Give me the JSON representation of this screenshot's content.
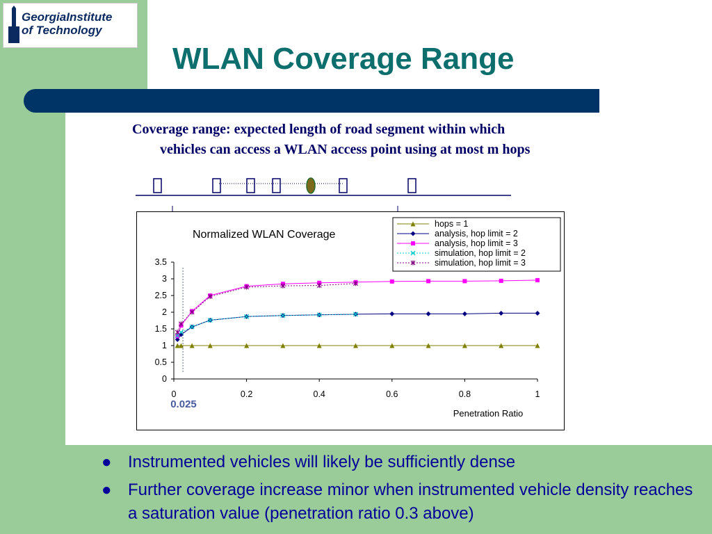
{
  "slide": {
    "logo_line1": "GeorgiaInstitute",
    "logo_line2": "of Technology",
    "title": "WLAN Coverage Range",
    "definition_line1": "Coverage range: expected length of road segment within which",
    "definition_line2": "vehicles can access a WLAN access point using at most m hops",
    "bullets": [
      "Instrumented vehicles will likely be sufficiently dense",
      "Further coverage increase minor when instrumented vehicle density reaches a saturation value (penetration ratio 0.3 above)"
    ],
    "colors": {
      "title": "#0d6e6e",
      "band": "#99cc99",
      "bar": "#003366",
      "text": "#000099"
    }
  },
  "chart_data": {
    "type": "line",
    "title": "Normalized WLAN Coverage",
    "xlabel": "Penetration Ratio",
    "ylabel": "",
    "xlim": [
      0,
      1
    ],
    "ylim": [
      0,
      3.5
    ],
    "xticks": [
      0,
      0.2,
      0.4,
      0.6,
      0.8,
      1
    ],
    "yticks": [
      0,
      0.5,
      1,
      1.5,
      2,
      2.5,
      3,
      3.5
    ],
    "annotation": {
      "x": 0.025,
      "label": "0.025"
    },
    "legend_position": "top-right",
    "grid": false,
    "series": [
      {
        "name": "hops = 1",
        "color": "#808000",
        "marker": "triangle",
        "dash": "solid",
        "x": [
          0.01,
          0.02,
          0.05,
          0.1,
          0.2,
          0.3,
          0.4,
          0.5,
          0.6,
          0.7,
          0.8,
          0.9,
          1.0
        ],
        "y": [
          1,
          1,
          1,
          1,
          1,
          1,
          1,
          1,
          1,
          1,
          1,
          1,
          1
        ]
      },
      {
        "name": "analysis, hop limit = 2",
        "color": "#000080",
        "marker": "diamond",
        "dash": "solid",
        "x": [
          0.01,
          0.02,
          0.05,
          0.1,
          0.2,
          0.3,
          0.4,
          0.5,
          0.6,
          0.7,
          0.8,
          0.9,
          1.0
        ],
        "y": [
          1.18,
          1.33,
          1.56,
          1.76,
          1.87,
          1.9,
          1.92,
          1.94,
          1.95,
          1.95,
          1.95,
          1.97,
          1.97
        ]
      },
      {
        "name": "analysis, hop limit = 3",
        "color": "#ff00ff",
        "marker": "square",
        "dash": "solid",
        "x": [
          0.01,
          0.02,
          0.05,
          0.1,
          0.2,
          0.3,
          0.4,
          0.5,
          0.6,
          0.7,
          0.8,
          0.9,
          1.0
        ],
        "y": [
          1.28,
          1.6,
          2.03,
          2.5,
          2.78,
          2.85,
          2.88,
          2.9,
          2.92,
          2.93,
          2.93,
          2.94,
          2.96
        ]
      },
      {
        "name": "simulation, hop limit = 2",
        "color": "#00cccc",
        "marker": "x",
        "dash": "dotted",
        "x": [
          0.01,
          0.02,
          0.05,
          0.1,
          0.2,
          0.3,
          0.4,
          0.5
        ],
        "y": [
          1.3,
          1.4,
          1.56,
          1.76,
          1.87,
          1.9,
          1.92,
          1.94
        ]
      },
      {
        "name": "simulation, hop limit = 3",
        "color": "#800080",
        "marker": "star",
        "dash": "dotted",
        "x": [
          0.01,
          0.02,
          0.05,
          0.1,
          0.2,
          0.3,
          0.4,
          0.5
        ],
        "y": [
          1.4,
          1.65,
          2.0,
          2.47,
          2.75,
          2.79,
          2.8,
          2.86
        ]
      }
    ]
  }
}
